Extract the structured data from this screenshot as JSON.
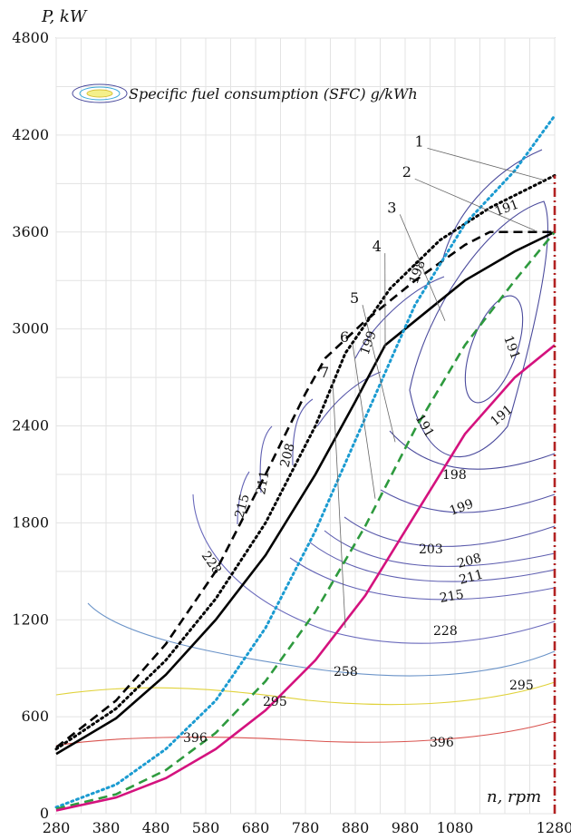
{
  "chart_data": {
    "type": "line",
    "xlabel": "n, rpm",
    "ylabel": "P, kW",
    "xlim": [
      280,
      1280
    ],
    "ylim": [
      0,
      4800
    ],
    "x_ticks": [
      280,
      380,
      480,
      580,
      680,
      780,
      880,
      980,
      1080,
      1280
    ],
    "y_ticks": [
      0,
      600,
      1200,
      1800,
      2400,
      3000,
      3600,
      4200,
      4800
    ],
    "grid": true,
    "legend": {
      "label": "Specific fuel consumption (SFC) g/kWh",
      "position": "top-left"
    },
    "series": [
      {
        "name": "1",
        "color": "#000000",
        "dash": "dotted",
        "points": [
          [
            280,
            400
          ],
          [
            400,
            650
          ],
          [
            500,
            950
          ],
          [
            600,
            1330
          ],
          [
            700,
            1800
          ],
          [
            800,
            2400
          ],
          [
            860,
            2850
          ],
          [
            950,
            3250
          ],
          [
            1050,
            3550
          ],
          [
            1150,
            3750
          ],
          [
            1280,
            3950
          ]
        ]
      },
      {
        "name": "2",
        "color": "#000000",
        "dash": "dashed",
        "points": [
          [
            280,
            410
          ],
          [
            400,
            700
          ],
          [
            500,
            1050
          ],
          [
            600,
            1500
          ],
          [
            700,
            2100
          ],
          [
            780,
            2600
          ],
          [
            820,
            2820
          ],
          [
            900,
            3050
          ],
          [
            1000,
            3300
          ],
          [
            1100,
            3520
          ],
          [
            1150,
            3600
          ],
          [
            1280,
            3600
          ]
        ]
      },
      {
        "name": "3",
        "color": "#000000",
        "dash": "solid",
        "points": [
          [
            280,
            370
          ],
          [
            400,
            590
          ],
          [
            500,
            860
          ],
          [
            600,
            1200
          ],
          [
            700,
            1600
          ],
          [
            800,
            2100
          ],
          [
            880,
            2550
          ],
          [
            940,
            2900
          ],
          [
            1020,
            3100
          ],
          [
            1100,
            3300
          ],
          [
            1200,
            3480
          ],
          [
            1280,
            3600
          ]
        ]
      },
      {
        "name": "4",
        "color": "#1b9bd1",
        "dash": "dotted",
        "points": [
          [
            280,
            40
          ],
          [
            400,
            180
          ],
          [
            500,
            400
          ],
          [
            600,
            700
          ],
          [
            700,
            1150
          ],
          [
            800,
            1750
          ],
          [
            900,
            2450
          ],
          [
            1000,
            3150
          ],
          [
            1100,
            3650
          ],
          [
            1200,
            3980
          ],
          [
            1280,
            4320
          ]
        ]
      },
      {
        "name": "5",
        "color": "#2e9a3e",
        "dash": "dashed",
        "points": [
          [
            280,
            30
          ],
          [
            400,
            120
          ],
          [
            500,
            270
          ],
          [
            600,
            500
          ],
          [
            700,
            820
          ],
          [
            800,
            1250
          ],
          [
            900,
            1780
          ],
          [
            1000,
            2380
          ],
          [
            1100,
            2900
          ],
          [
            1200,
            3300
          ],
          [
            1280,
            3600
          ]
        ]
      },
      {
        "name": "6",
        "color": "#d4127e",
        "dash": "solid",
        "points": [
          [
            280,
            20
          ],
          [
            400,
            100
          ],
          [
            500,
            220
          ],
          [
            600,
            400
          ],
          [
            700,
            640
          ],
          [
            800,
            950
          ],
          [
            900,
            1350
          ],
          [
            1000,
            1850
          ],
          [
            1100,
            2350
          ],
          [
            1200,
            2700
          ],
          [
            1280,
            2900
          ]
        ]
      },
      {
        "name": "7",
        "color": "#b22222",
        "dash": "dashdot",
        "points": [
          [
            1280,
            0
          ],
          [
            1280,
            3950
          ]
        ]
      }
    ],
    "annotations": [
      {
        "text": "1",
        "x": 1010,
        "y": 4130
      },
      {
        "text": "2",
        "x": 985,
        "y": 3940
      },
      {
        "text": "3",
        "x": 955,
        "y": 3720
      },
      {
        "text": "4",
        "x": 925,
        "y": 3480
      },
      {
        "text": "5",
        "x": 880,
        "y": 3160
      },
      {
        "text": "6",
        "x": 860,
        "y": 2920
      },
      {
        "text": "7",
        "x": 820,
        "y": 2700
      }
    ],
    "sfc_contours": [
      {
        "level": "191"
      },
      {
        "level": "198"
      },
      {
        "level": "199"
      },
      {
        "level": "203"
      },
      {
        "level": "208"
      },
      {
        "level": "211"
      },
      {
        "level": "215"
      },
      {
        "level": "228"
      },
      {
        "level": "258"
      },
      {
        "level": "295"
      },
      {
        "level": "396"
      }
    ]
  }
}
